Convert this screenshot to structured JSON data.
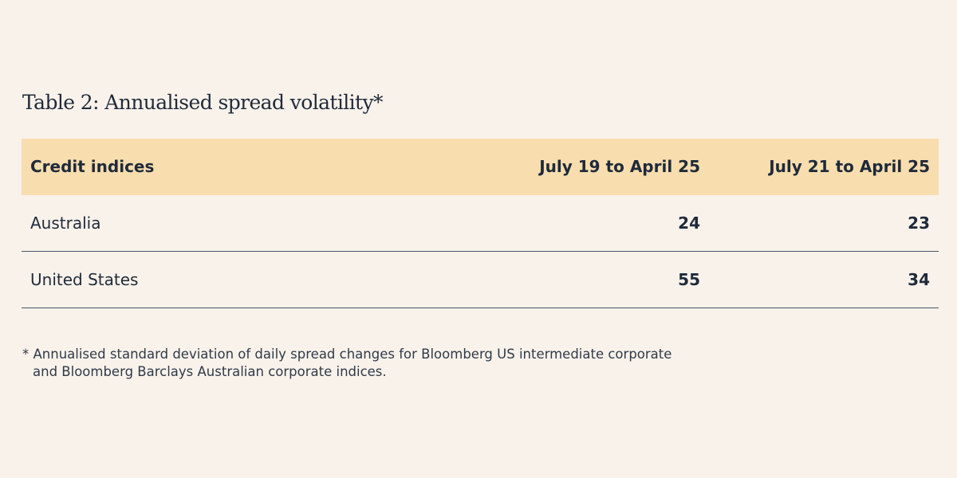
{
  "title": "Table 2: Annualised spread volatility*",
  "table": {
    "headers": [
      "Credit indices",
      "July 19 to April 25",
      "July 21 to April 25"
    ],
    "rows": [
      [
        "Australia",
        "24",
        "23"
      ],
      [
        "United States",
        "55",
        "34"
      ]
    ]
  },
  "footnote": {
    "line1": "* Annualised standard deviation of daily spread changes for Bloomberg US intermediate corporate",
    "line2": "and Bloomberg Barclays Australian corporate indices."
  },
  "colors": {
    "background": "#f9f2eb",
    "header_fill": "#f8ddae",
    "text": "#1f2a3a",
    "rule": "#465565"
  }
}
